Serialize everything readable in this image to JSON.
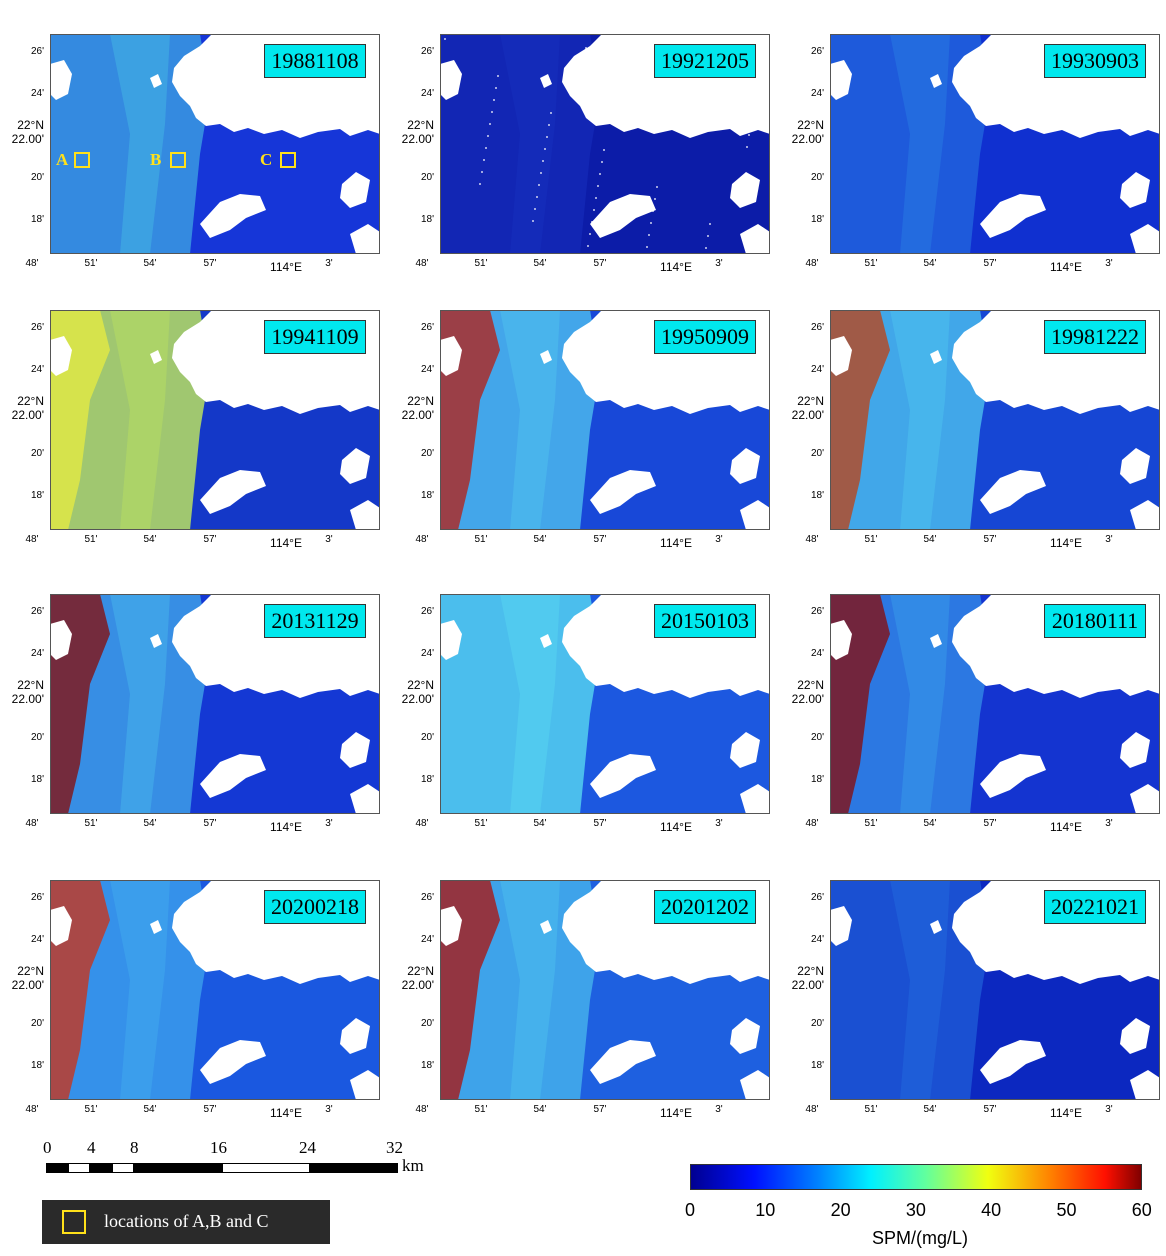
{
  "panels": [
    {
      "date": "19881108",
      "markers": true
    },
    {
      "date": "19921205"
    },
    {
      "date": "19930903"
    },
    {
      "date": "19941109"
    },
    {
      "date": "19950909"
    },
    {
      "date": "19981222"
    },
    {
      "date": "20131129"
    },
    {
      "date": "20150103"
    },
    {
      "date": "20180111"
    },
    {
      "date": "20200218"
    },
    {
      "date": "20201202"
    },
    {
      "date": "20221021"
    }
  ],
  "axes": {
    "y_ticks": [
      "26'",
      "24'",
      "22.00'",
      "20'",
      "18'"
    ],
    "lat_label": "22°N",
    "x_ticks": [
      "48'",
      "51'",
      "54'",
      "57'",
      "3'"
    ],
    "lon_label": "114°E"
  },
  "markers": {
    "A": "A",
    "B": "B",
    "C": "C"
  },
  "scale_bar": {
    "labels": [
      "0",
      "4",
      "8",
      "16",
      "24",
      "32"
    ],
    "unit": "km"
  },
  "legend": {
    "text": "locations of A,B and C"
  },
  "colorbar": {
    "ticks": [
      "0",
      "10",
      "20",
      "30",
      "40",
      "50",
      "60"
    ],
    "label": "SPM/(mg/L)",
    "colors": [
      "#000090",
      "#0010ff",
      "#0080ff",
      "#00f0ff",
      "#60ff9f",
      "#f0ff10",
      "#ff8000",
      "#ff1000",
      "#800000"
    ]
  }
}
